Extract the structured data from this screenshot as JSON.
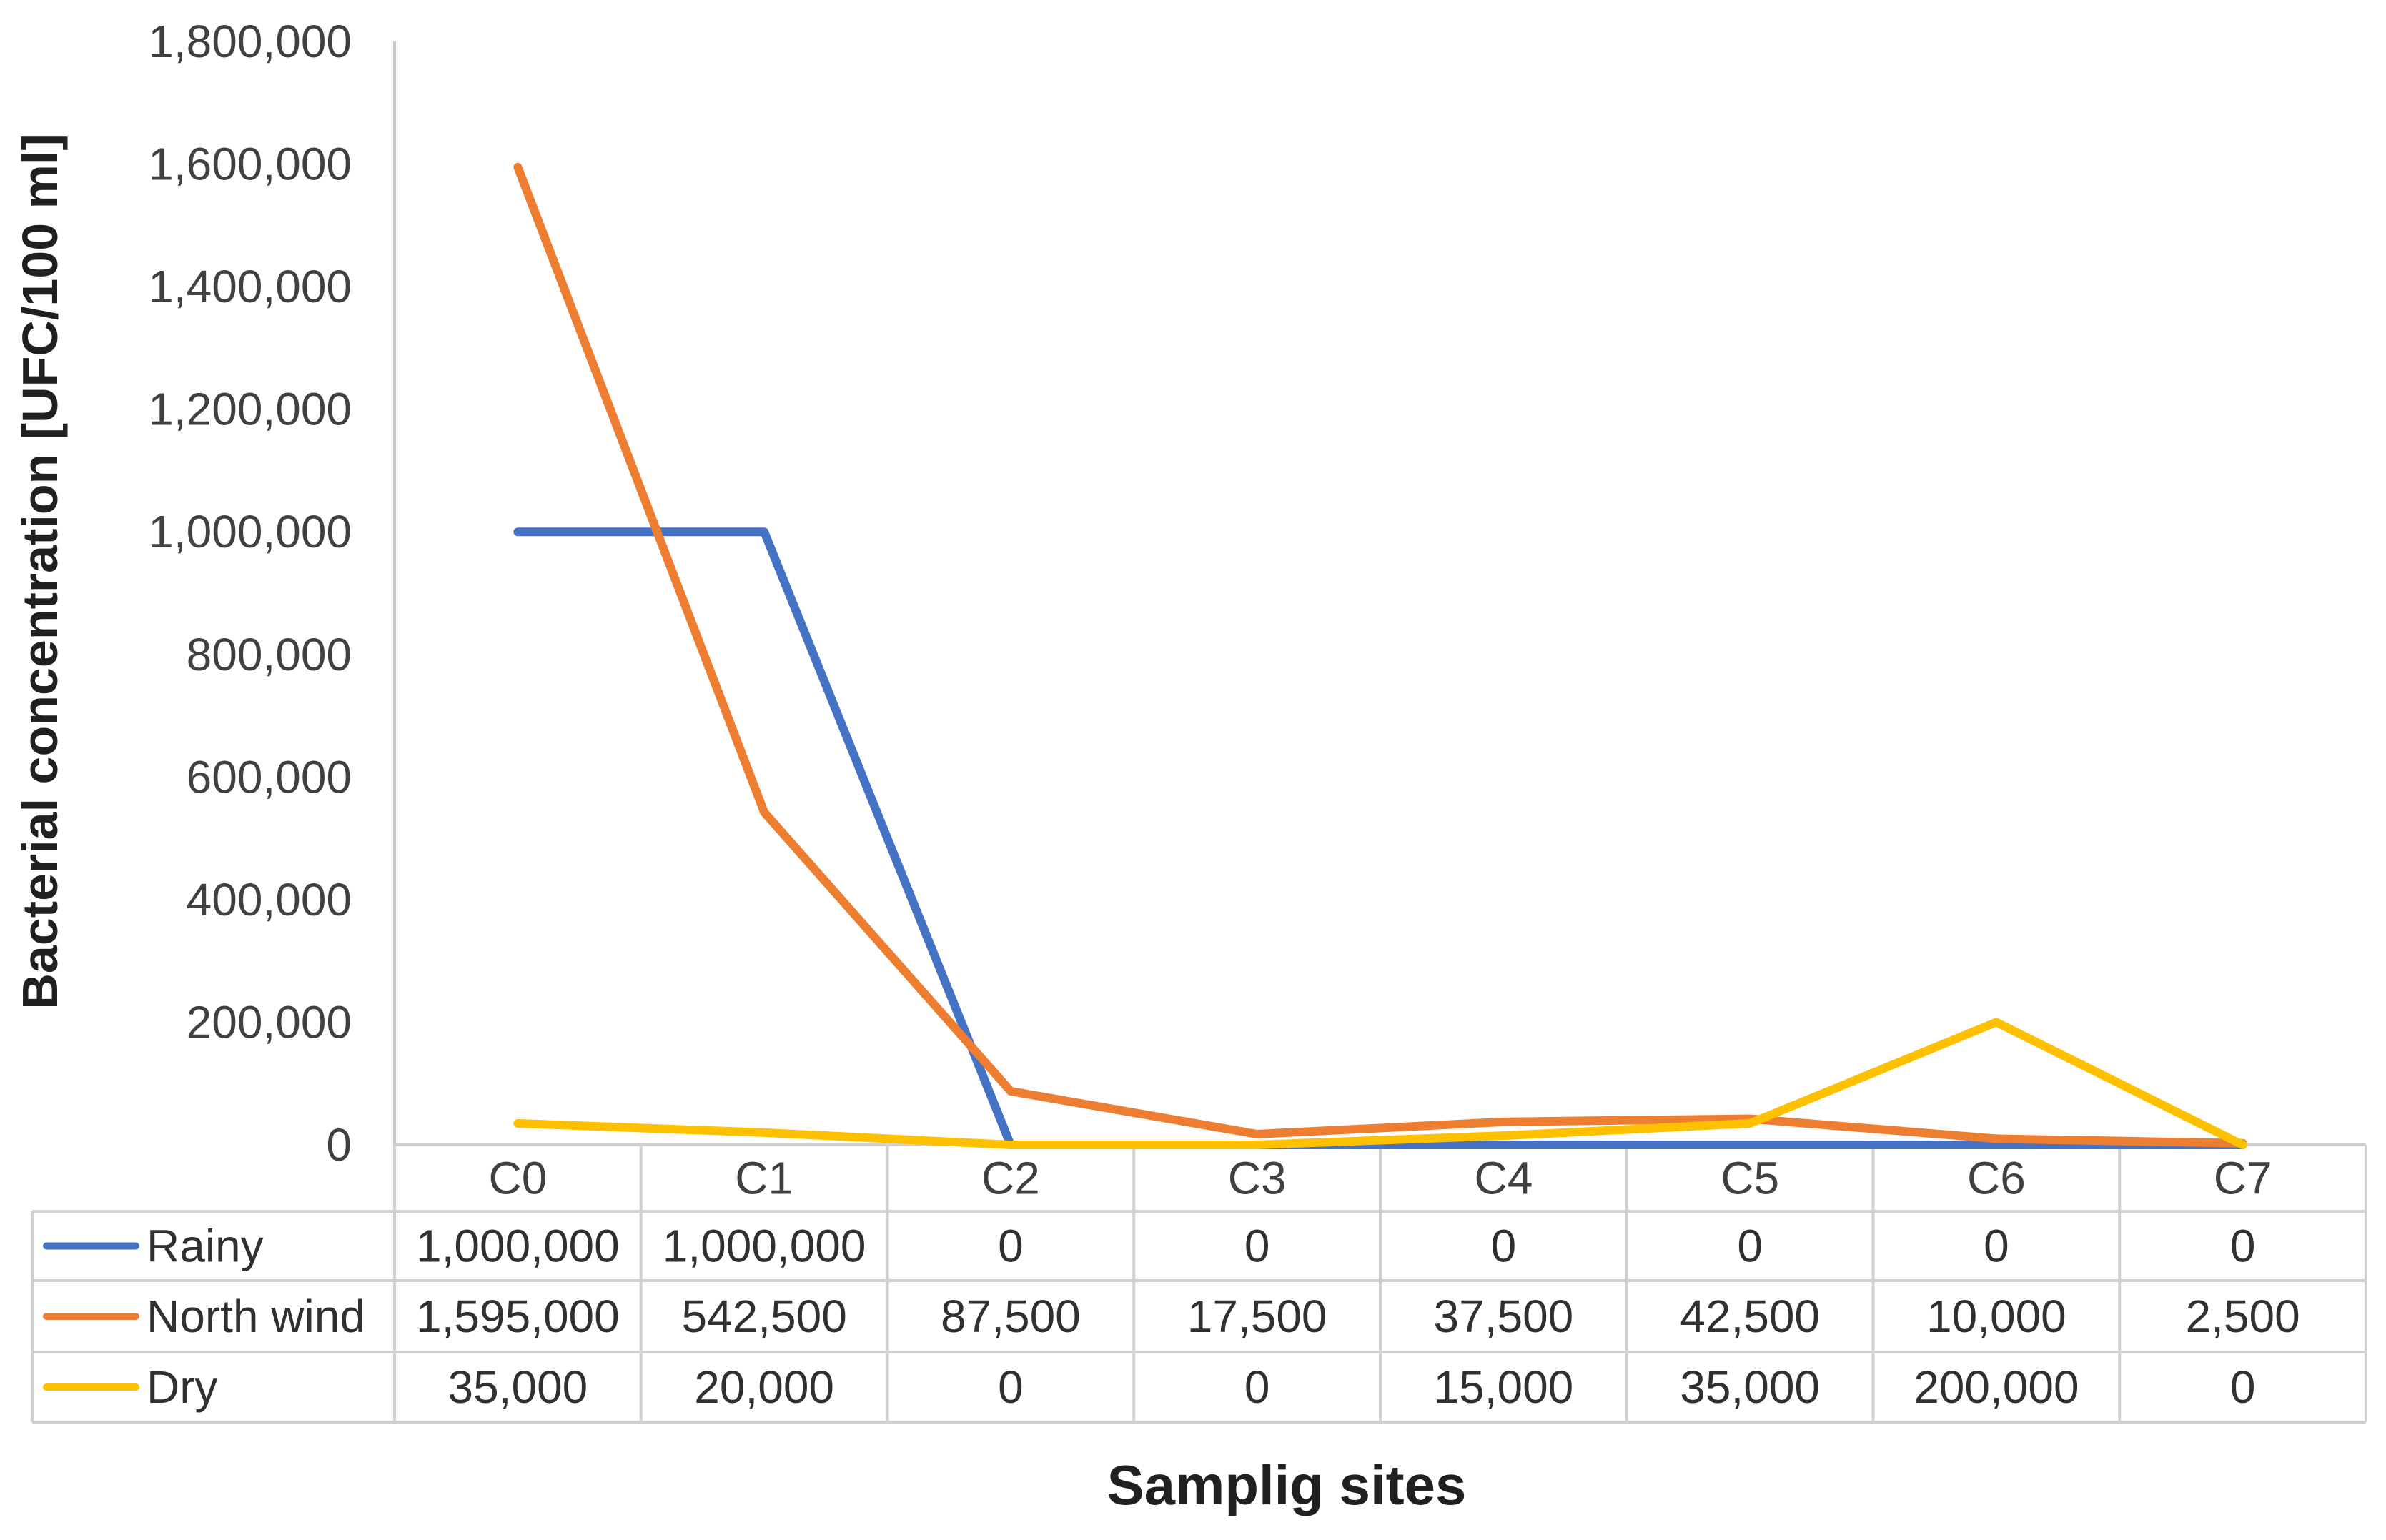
{
  "chart_data": {
    "type": "line",
    "xlabel": "Samplig sites",
    "ylabel": "Bacterial concentration [UFC/100 ml]",
    "ylim": [
      0,
      1800000
    ],
    "yticks": [
      0,
      200000,
      400000,
      600000,
      800000,
      1000000,
      1200000,
      1400000,
      1600000,
      1800000
    ],
    "ytick_labels": [
      "0",
      "200,000",
      "400,000",
      "600,000",
      "800,000",
      "1,000,000",
      "1,200,000",
      "1,400,000",
      "1,600,000",
      "1,800,000"
    ],
    "categories": [
      "C0",
      "C1",
      "C2",
      "C3",
      "C4",
      "C5",
      "C6",
      "C7"
    ],
    "grid": false,
    "legend": "data-table",
    "series": [
      {
        "name": "Rainy",
        "color": "#4472C4",
        "values": [
          1000000,
          1000000,
          0,
          0,
          0,
          0,
          0,
          0
        ],
        "labels": [
          "1,000,000",
          "1,000,000",
          "0",
          "0",
          "0",
          "0",
          "0",
          "0"
        ]
      },
      {
        "name": "North wind",
        "color": "#ED7D31",
        "values": [
          1595000,
          542500,
          87500,
          17500,
          37500,
          42500,
          10000,
          2500
        ],
        "labels": [
          "1,595,000",
          "542,500",
          "87,500",
          "17,500",
          "37,500",
          "42,500",
          "10,000",
          "2,500"
        ]
      },
      {
        "name": "Dry",
        "color": "#FFC000",
        "values": [
          35000,
          20000,
          0,
          0,
          15000,
          35000,
          200000,
          0
        ],
        "labels": [
          "35,000",
          "20,000",
          "0",
          "0",
          "15,000",
          "35,000",
          "200,000",
          "0"
        ]
      }
    ]
  }
}
